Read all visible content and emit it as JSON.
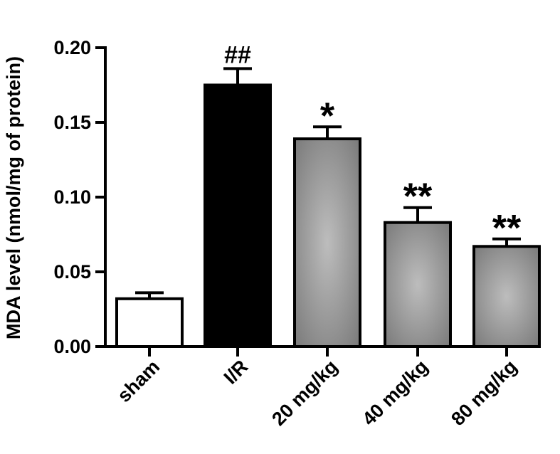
{
  "chart_data": {
    "type": "bar",
    "title": "",
    "xlabel": "",
    "ylabel": "MDA level (nmol/mg of protein)",
    "ylim": [
      0,
      0.2
    ],
    "yticks": [
      "0.00",
      "0.05",
      "0.10",
      "0.15",
      "0.20"
    ],
    "ytick_values": [
      0,
      0.05,
      0.1,
      0.15,
      0.2
    ],
    "categories": [
      "sham",
      "I/R",
      "20 mg/kg",
      "40 mg/kg",
      "80 mg/kg"
    ],
    "values": [
      0.032,
      0.175,
      0.139,
      0.083,
      0.067
    ],
    "errors": [
      0.004,
      0.011,
      0.008,
      0.01,
      0.005
    ],
    "annotations": [
      "",
      "##",
      "*",
      "**",
      "**"
    ],
    "bar_colors": [
      "#ffffff",
      "#000000",
      "gradient-gray",
      "gradient-gray",
      "gradient-gray"
    ],
    "grid": false,
    "legend": "none"
  }
}
